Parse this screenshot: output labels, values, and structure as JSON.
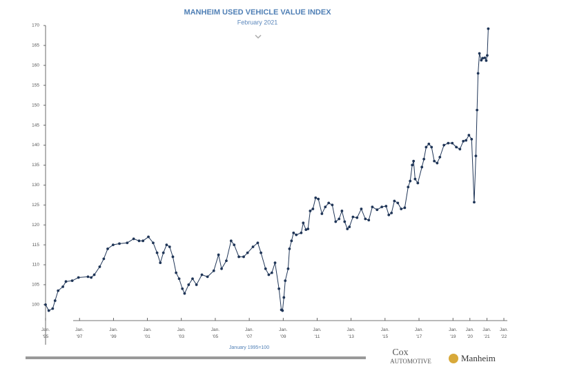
{
  "chart_data": {
    "type": "line",
    "title": "MANHEIM USED VEHICLE VALUE INDEX",
    "subtitle": "February 2021",
    "note": "January 1995=100",
    "logos": [
      "Cox",
      "AUTOMOTIVE",
      "Manheim"
    ],
    "color": "#1f3557",
    "ylim": [
      96,
      170
    ],
    "yticks": [
      100,
      105,
      110,
      115,
      120,
      125,
      130,
      135,
      140,
      145,
      150,
      155,
      160,
      165,
      170
    ],
    "xlim": [
      1995,
      2022
    ],
    "xticks": [
      {
        "value": 1995,
        "label": "Jan. '95"
      },
      {
        "value": 1997,
        "label": "Jan. '97"
      },
      {
        "value": 1999,
        "label": "Jan. '99"
      },
      {
        "value": 2001,
        "label": "Jan. '01"
      },
      {
        "value": 2003,
        "label": "Jan. '03"
      },
      {
        "value": 2005,
        "label": "Jan. '05"
      },
      {
        "value": 2007,
        "label": "Jan. '07"
      },
      {
        "value": 2009,
        "label": "Jan. '09"
      },
      {
        "value": 2011,
        "label": "Jan. '11"
      },
      {
        "value": 2013,
        "label": "Jan. '13"
      },
      {
        "value": 2015,
        "label": "Jan. '15"
      },
      {
        "value": 2017,
        "label": "Jan. '17"
      },
      {
        "value": 2019,
        "label": "Jan. '19"
      },
      {
        "value": 2020,
        "label": "Jan. '20"
      },
      {
        "value": 2021,
        "label": "Jan. '21"
      },
      {
        "value": 2022,
        "label": "Jan. '22"
      }
    ],
    "x": [
      1995.0,
      1995.19,
      1995.42,
      1995.56,
      1995.74,
      1996.02,
      1996.2,
      1996.57,
      1996.94,
      1997.5,
      1997.69,
      1997.87,
      1998.19,
      1998.43,
      1998.66,
      1998.98,
      1999.35,
      1999.81,
      2000.19,
      2000.51,
      2000.74,
      2001.06,
      2001.34,
      2001.57,
      2001.76,
      2001.94,
      2002.13,
      2002.31,
      2002.5,
      2002.69,
      2002.87,
      2003.06,
      2003.19,
      2003.43,
      2003.66,
      2003.89,
      2004.21,
      2004.54,
      2004.91,
      2005.19,
      2005.37,
      2005.65,
      2005.93,
      2006.11,
      2006.39,
      2006.67,
      2006.9,
      2007.22,
      2007.5,
      2007.69,
      2007.96,
      2008.15,
      2008.33,
      2008.52,
      2008.75,
      2008.89,
      2008.96,
      2009.04,
      2009.12,
      2009.29,
      2009.37,
      2009.49,
      2009.61,
      2009.77,
      2010.06,
      2010.18,
      2010.34,
      2010.46,
      2010.59,
      2010.75,
      2010.91,
      2011.07,
      2011.28,
      2011.48,
      2011.68,
      2011.89,
      2012.09,
      2012.29,
      2012.46,
      2012.62,
      2012.78,
      2012.9,
      2013.11,
      2013.35,
      2013.6,
      2013.84,
      2014.04,
      2014.25,
      2014.53,
      2014.81,
      2015.06,
      2015.22,
      2015.38,
      2015.55,
      2015.75,
      2015.95,
      2016.16,
      2016.36,
      2016.48,
      2016.6,
      2016.68,
      2016.77,
      2016.93,
      2017.17,
      2017.29,
      2017.42,
      2017.58,
      2017.74,
      2017.9,
      2018.07,
      2018.23,
      2018.47,
      2018.72,
      2018.96,
      2019.2,
      2019.41,
      2019.61,
      2019.77,
      2019.94,
      2020.1,
      2020.25,
      2020.35,
      2020.42,
      2020.48,
      2020.56,
      2020.67,
      2020.75,
      2020.88,
      2020.96,
      2021.02,
      2021.08
    ],
    "values": [
      100,
      98.5,
      99,
      101,
      103.5,
      104.5,
      105.8,
      106,
      106.8,
      107,
      106.8,
      107.5,
      109.5,
      111.5,
      114,
      115,
      115.3,
      115.5,
      116.5,
      116,
      116,
      117,
      115.5,
      113,
      110.5,
      113,
      115,
      114.5,
      112,
      108,
      106.5,
      104,
      102.8,
      105,
      106.5,
      105,
      107.5,
      107,
      108.5,
      112.5,
      109,
      111,
      116,
      115,
      112,
      112,
      113,
      114.5,
      115.5,
      113,
      109,
      107.5,
      108,
      110.5,
      104,
      98.7,
      98.5,
      101.8,
      106,
      109,
      114,
      116,
      118,
      117.5,
      118,
      120.5,
      118.8,
      119,
      123.5,
      124,
      126.8,
      126.5,
      122.8,
      124.5,
      125.5,
      125,
      120.8,
      121.5,
      123.5,
      120.8,
      119,
      119.5,
      122,
      121.8,
      124,
      121.5,
      121.2,
      124.5,
      123.8,
      124.5,
      124.7,
      122.5,
      123,
      126,
      125.5,
      124,
      124.3,
      129.5,
      131,
      135,
      136,
      131.5,
      130.5,
      134.5,
      136.5,
      139.5,
      140.3,
      139.5,
      136,
      135.5,
      137,
      140,
      140.5,
      140.5,
      139.5,
      139,
      141,
      141.2,
      142.5,
      141.5,
      125.7,
      137.3,
      148.8,
      158,
      163,
      161.3,
      161.8,
      161.9,
      161.2,
      162.5,
      169.2
    ]
  }
}
